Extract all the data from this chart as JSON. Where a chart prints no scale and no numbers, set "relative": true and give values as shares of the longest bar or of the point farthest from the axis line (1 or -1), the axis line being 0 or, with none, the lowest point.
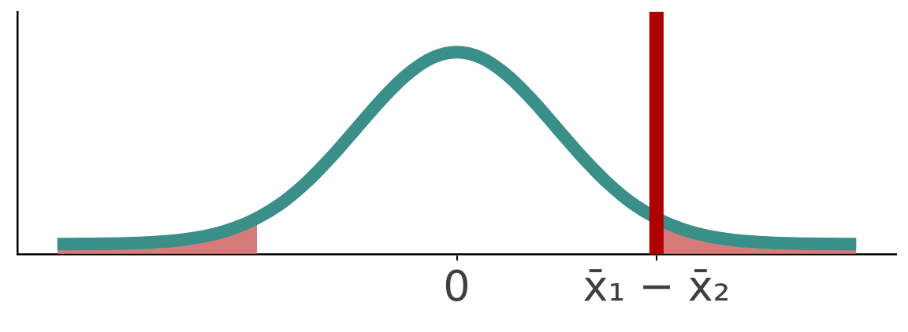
{
  "chart_data": {
    "type": "line",
    "relative": true,
    "grid": false,
    "legend": false,
    "marker": "none",
    "categories": [
      null,
      null,
      null,
      null,
      null,
      null,
      null,
      null,
      null,
      null,
      null,
      null,
      null,
      null,
      null,
      null,
      "0",
      null,
      null,
      null,
      null,
      null,
      null,
      null,
      "x̄₁ − x̄₂",
      null,
      null,
      null,
      null,
      null,
      null,
      null,
      null
    ],
    "series": [
      {
        "type": "area",
        "color": "#d06666",
        "values": [
          0.05,
          0.051,
          0.052,
          0.055,
          0.061,
          0.072,
          0.092,
          0.126,
          0.179,
          null,
          null,
          null,
          null,
          null,
          null,
          null,
          null,
          null,
          null,
          null,
          null,
          null,
          null,
          null,
          null,
          null,
          null,
          null,
          null,
          null,
          null,
          null,
          null
        ]
      },
      {
        "type": "area",
        "color": "#d06666",
        "values": [
          null,
          null,
          null,
          null,
          null,
          null,
          null,
          null,
          null,
          null,
          null,
          null,
          null,
          null,
          null,
          null,
          null,
          null,
          null,
          null,
          null,
          null,
          null,
          null,
          0.179,
          0.126,
          0.092,
          0.072,
          0.061,
          0.055,
          0.052,
          0.051,
          0.05
        ]
      },
      {
        "type": "line",
        "color": "#3a8f88",
        "values": [
          0.05,
          0.051,
          0.052,
          0.055,
          0.061,
          0.072,
          0.092,
          0.126,
          0.179,
          0.255,
          0.358,
          0.485,
          0.626,
          0.767,
          0.888,
          0.971,
          1,
          0.971,
          0.888,
          0.767,
          0.626,
          0.485,
          0.358,
          0.255,
          0.179,
          0.126,
          0.092,
          0.072,
          0.061,
          0.055,
          0.052,
          0.051,
          0.05
        ]
      }
    ],
    "ref_lines": [
      {
        "axis": "x",
        "value": "x̄₁ − x̄₂",
        "color": "#b00000"
      }
    ]
  }
}
